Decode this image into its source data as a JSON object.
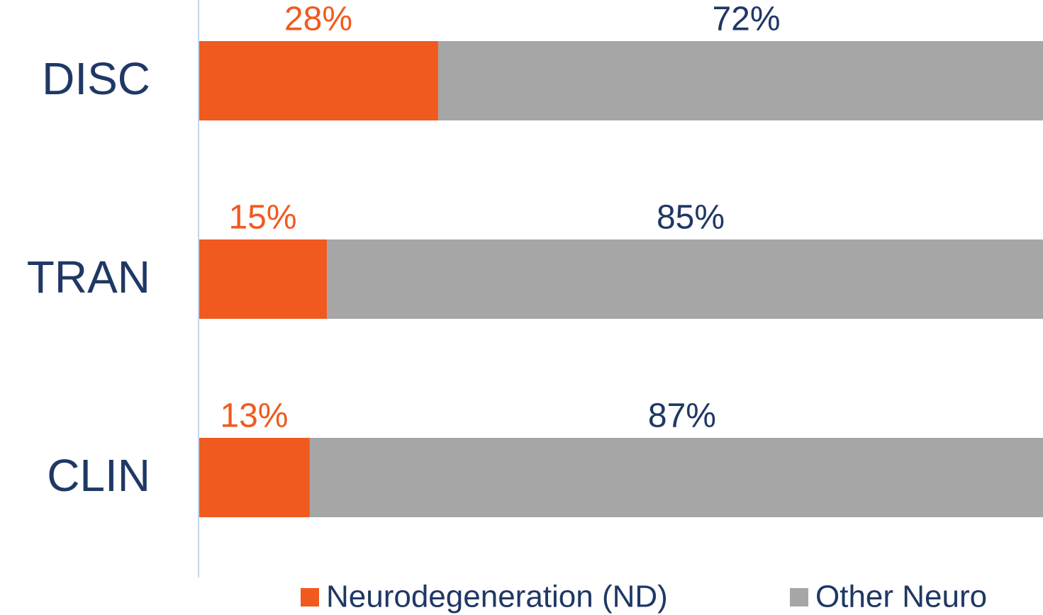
{
  "chart_data": {
    "type": "stacked-barh",
    "categories": [
      "DISC",
      "TRAN",
      "CLIN"
    ],
    "series": [
      {
        "name": "Neurodegeneration (ND)",
        "color": "#f15a1e",
        "values": [
          28,
          15,
          13
        ],
        "value_labels": [
          "28%",
          "15%",
          "13%"
        ]
      },
      {
        "name": "Other Neuro",
        "color": "#a6a6a6",
        "values": [
          72,
          85,
          87
        ],
        "value_labels": [
          "72%",
          "85%",
          "87%"
        ]
      }
    ],
    "xlim": [
      0,
      100
    ],
    "legend": "bottom"
  }
}
